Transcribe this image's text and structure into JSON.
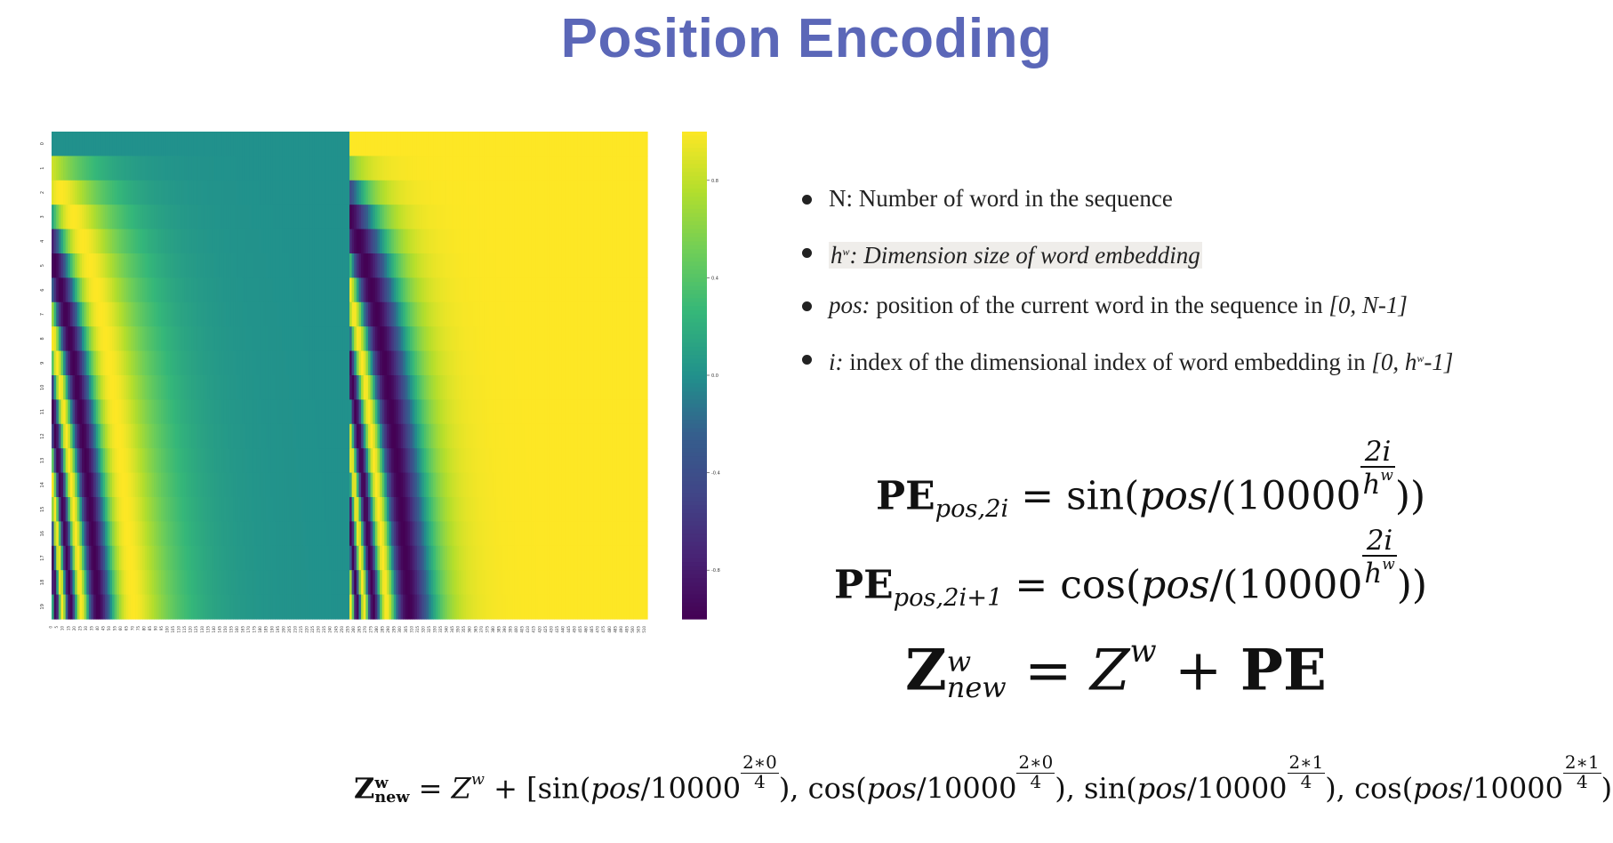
{
  "title": "Position Encoding",
  "bullets": [
    {
      "lead": "N:",
      "text": " Number of word in the sequence"
    },
    {
      "lead": "h",
      "sup": "w",
      "text": ": Dimension size of word embedding"
    },
    {
      "lead": "pos:",
      "text": " position of the current word in the sequence in ",
      "range": "[0, N-1]"
    },
    {
      "lead": "i:",
      "text": " index of the dimensional index of word embedding in ",
      "range_start": "[0, h",
      "range_sup": "w",
      "range_end": "-1]"
    }
  ],
  "chart_data": {
    "type": "heatmap",
    "rows": 20,
    "columns": 512,
    "row_tick_labels": [
      "0",
      "1",
      "2",
      "3",
      "4",
      "5",
      "6",
      "7",
      "8",
      "9",
      "10",
      "11",
      "12",
      "13",
      "14",
      "15",
      "16",
      "17",
      "18",
      "19"
    ],
    "column_tick_step": 5,
    "colormap": "viridis",
    "colorbar_ticks": [
      0.8,
      0.4,
      0.0,
      -0.4,
      -0.8
    ],
    "colorbar_range": [
      -1,
      1
    ],
    "left_half_function": "sin",
    "right_half_function": "cos",
    "d_model": 512
  },
  "equations": {
    "eq1": {
      "lhs": "PE",
      "sub": "pos,2i",
      "func": "sin",
      "arg": "pos",
      "base": "10000",
      "num": "2i",
      "den": "h",
      "den_sup": "w"
    },
    "eq2": {
      "lhs": "PE",
      "sub": "pos,2i+1",
      "func": "cos",
      "arg": "pos",
      "base": "10000",
      "num": "2i",
      "den": "h",
      "den_sup": "w"
    },
    "eq3": {
      "lhs": "Z",
      "lhs_sup": "w",
      "lhs_sub": "new",
      "rhs": "Z",
      "rhs_sup": "w",
      "plus": "PE"
    },
    "eq4": {
      "lhs": "Z",
      "lhs_sup": "w",
      "lhs_sub": "new",
      "rhs": "Z",
      "rhs_sup": "w",
      "terms": [
        {
          "func": "sin",
          "num": "2∗0",
          "den": "4"
        },
        {
          "func": "cos",
          "num": "2∗0",
          "den": "4"
        },
        {
          "func": "sin",
          "num": "2∗1",
          "den": "4"
        },
        {
          "func": "cos",
          "num": "2∗1",
          "den": "4"
        }
      ],
      "arg": "pos",
      "base": "10000"
    }
  }
}
